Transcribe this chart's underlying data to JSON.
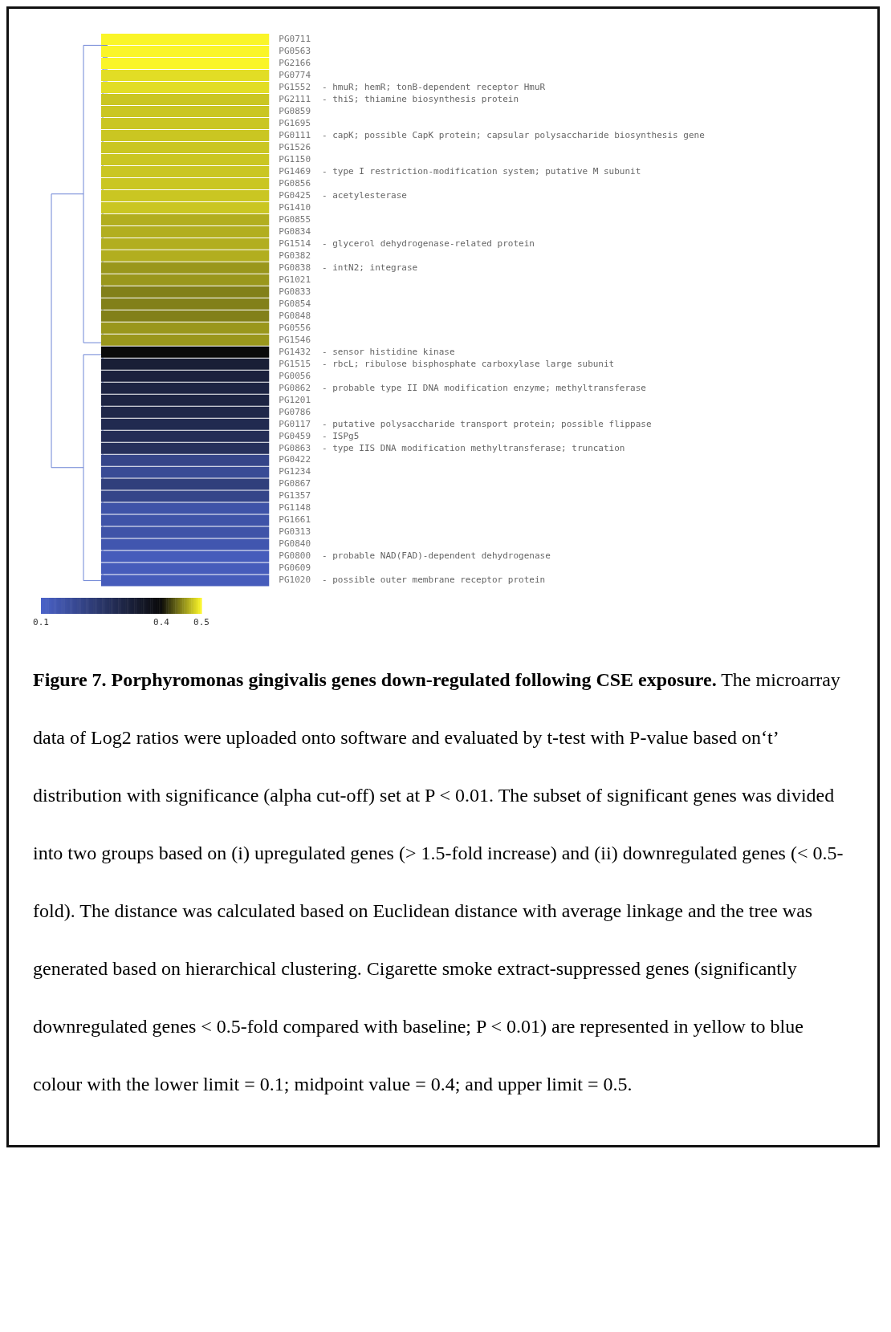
{
  "chart_data": {
    "type": "heatmap",
    "title": "Figure 7. Porphyromonas gingivalis genes down-regulated following CSE exposure.",
    "annotations": [
      "The microarray data of Log2 ratios were uploaded onto software and evaluated by t-test with P-value based on‘t’ distribution with significance (alpha cut-off) set at P < 0.01. The subset of significant genes was divided into two groups based on (i) upregulated genes (> 1.5-fold increase) and (ii) downregulated genes (< 0.5-fold). The distance was calculated based on Euclidean distance with average linkage and the tree was generated based on hierarchical clustering. Cigarette smoke extract-suppressed genes (significantly downregulated genes < 0.5-fold compared with baseline; P < 0.01)  are represented in yellow to blue colour with the lower limit = 0.1; midpoint value = 0.4; and upper limit = 0.5."
    ],
    "categories": [
      null
    ],
    "y_categories": [
      "PG0711",
      "PG0563",
      "PG2166",
      "PG0774",
      "PG1552",
      "PG2111",
      "PG0859",
      "PG1695",
      "PG0111",
      "PG1526",
      "PG1150",
      "PG1469",
      "PG0856",
      "PG0425",
      "PG1410",
      "PG0855",
      "PG0834",
      "PG1514",
      "PG0382",
      "PG0838",
      "PG1021",
      "PG0833",
      "PG0854",
      "PG0848",
      "PG0556",
      "PG1546",
      "PG1432",
      "PG1515",
      "PG0056",
      "PG0862",
      "PG1201",
      "PG0786",
      "PG0117",
      "PG0459",
      "PG0863",
      "PG0422",
      "PG1234",
      "PG0867",
      "PG1357",
      "PG1148",
      "PG1661",
      "PG0313",
      "PG0840",
      "PG0800",
      "PG0609",
      "PG1020"
    ],
    "y2_categories": [
      null,
      null,
      null,
      null,
      "- hmuR; hemR; tonB-dependent receptor HmuR",
      "- thiS; thiamine biosynthesis protein",
      null,
      null,
      "- capK; possible CapK protein; capsular polysaccharide biosynthesis gene",
      null,
      null,
      "- type I restriction-modification system; putative M subunit",
      null,
      "- acetylesterase",
      null,
      null,
      null,
      "- glycerol dehydrogenase-related protein",
      null,
      "- intN2; integrase",
      null,
      null,
      null,
      null,
      null,
      null,
      "- sensor histidine kinase",
      "- rbcL; ribulose bisphosphate carboxylase large subunit",
      null,
      "- probable type II DNA modification enzyme; methyltransferase",
      null,
      null,
      "- putative polysaccharide transport protein; possible flippase",
      "- ISPg5",
      "- type IIS DNA modification methyltransferase; truncation",
      null,
      null,
      null,
      null,
      null,
      null,
      null,
      null,
      "- probable NAD(FAD)-dependent dehydrogenase",
      null,
      "- possible outer membrane receptor protein"
    ],
    "cells": [
      [
        0.5
      ],
      [
        0.5
      ],
      [
        0.5
      ],
      [
        0.49
      ],
      [
        0.49
      ],
      [
        0.48
      ],
      [
        0.48
      ],
      [
        0.48
      ],
      [
        0.48
      ],
      [
        0.48
      ],
      [
        0.48
      ],
      [
        0.48
      ],
      [
        0.48
      ],
      [
        0.48
      ],
      [
        0.48
      ],
      [
        0.47
      ],
      [
        0.47
      ],
      [
        0.47
      ],
      [
        0.47
      ],
      [
        0.46
      ],
      [
        0.46
      ],
      [
        0.45
      ],
      [
        0.45
      ],
      [
        0.45
      ],
      [
        0.46
      ],
      [
        0.46
      ],
      [
        0.4
      ],
      [
        0.33
      ],
      [
        0.32
      ],
      [
        0.31
      ],
      [
        0.31
      ],
      [
        0.3
      ],
      [
        0.29
      ],
      [
        0.28
      ],
      [
        0.27
      ],
      [
        0.2
      ],
      [
        0.18
      ],
      [
        0.22
      ],
      [
        0.2
      ],
      [
        0.15
      ],
      [
        0.15
      ],
      [
        0.15
      ],
      [
        0.14
      ],
      [
        0.12
      ],
      [
        0.12
      ],
      [
        0.12
      ]
    ],
    "clim": [
      0.1,
      0.5
    ],
    "cticks": [
      0.1,
      0.4,
      0.5
    ]
  }
}
